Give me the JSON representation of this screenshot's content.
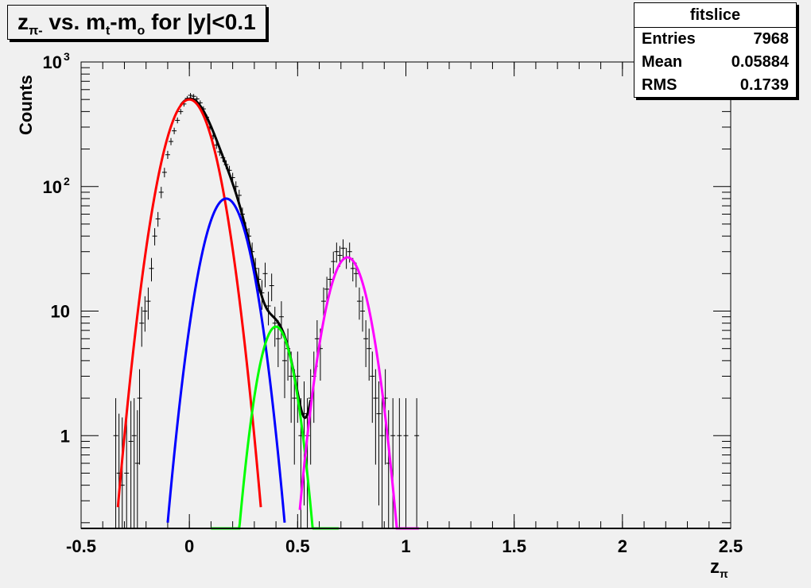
{
  "title": {
    "main": "z",
    "sub": "π-",
    "rest": " vs. m",
    "sub2": "t",
    "rest2": "-m",
    "sub3": "o",
    "rest3": " for |y|<0.1"
  },
  "stats": {
    "header": "fitslice",
    "rows": [
      {
        "label": "Entries",
        "value": "7968"
      },
      {
        "label": "Mean",
        "value": "0.05884"
      },
      {
        "label": "RMS",
        "value": "0.1739"
      }
    ]
  },
  "chart_data": {
    "type": "line",
    "title": "zπ- vs. mt-mo for |y|<0.1",
    "xlabel": "zπ",
    "ylabel": "Counts",
    "xlim": [
      -0.5,
      2.5
    ],
    "ylim": [
      0.18,
      1000
    ],
    "yscale": "log",
    "xticks": [
      "-0.5",
      "0",
      "0.5",
      "1",
      "1.5",
      "2",
      "2.5"
    ],
    "yticks": [
      {
        "v": 1,
        "t": "1"
      },
      {
        "v": 10,
        "t": "10"
      },
      {
        "v": 100,
        "t": "10",
        "sup": "2"
      },
      {
        "v": 1000,
        "t": "10",
        "sup": "3"
      }
    ],
    "series": [
      {
        "color": "#ff0000",
        "peak": 500,
        "mean": 0.0,
        "sigma": 0.085,
        "range": [
          -0.33,
          0.33
        ]
      },
      {
        "color": "#0000ff",
        "peak": 80,
        "mean": 0.17,
        "sigma": 0.078,
        "range": [
          -0.1,
          0.44
        ]
      },
      {
        "color": "#00ff00",
        "peak": 7.5,
        "mean": 0.4,
        "sigma": 0.062,
        "range": [
          0.1,
          0.69
        ]
      },
      {
        "color": "#ff00ff",
        "peak": 27,
        "mean": 0.73,
        "sigma": 0.072,
        "range": [
          0.51,
          1.06
        ]
      }
    ],
    "total_color": "#000000",
    "total_range": [
      -0.04,
      0.56
    ],
    "data_points": [
      [
        -0.34,
        1.0
      ],
      [
        -0.325,
        0.5
      ],
      [
        -0.31,
        0.4
      ],
      [
        -0.29,
        0.5
      ],
      [
        -0.27,
        0.9
      ],
      [
        -0.255,
        1.0
      ],
      [
        -0.24,
        0.6
      ],
      [
        -0.23,
        2.0
      ],
      [
        -0.22,
        8
      ],
      [
        -0.205,
        10
      ],
      [
        -0.19,
        12
      ],
      [
        -0.175,
        22
      ],
      [
        -0.16,
        40
      ],
      [
        -0.145,
        55
      ],
      [
        -0.13,
        90
      ],
      [
        -0.115,
        130
      ],
      [
        -0.1,
        180
      ],
      [
        -0.085,
        230
      ],
      [
        -0.07,
        280
      ],
      [
        -0.055,
        340
      ],
      [
        -0.04,
        400
      ],
      [
        -0.025,
        460
      ],
      [
        -0.01,
        510
      ],
      [
        0.005,
        540
      ],
      [
        0.02,
        530
      ],
      [
        0.035,
        505
      ],
      [
        0.05,
        470
      ],
      [
        0.065,
        420
      ],
      [
        0.08,
        360
      ],
      [
        0.095,
        300
      ],
      [
        0.11,
        255
      ],
      [
        0.125,
        215
      ],
      [
        0.14,
        190
      ],
      [
        0.155,
        170
      ],
      [
        0.17,
        150
      ],
      [
        0.185,
        135
      ],
      [
        0.2,
        118
      ],
      [
        0.215,
        100
      ],
      [
        0.23,
        85
      ],
      [
        0.245,
        60
      ],
      [
        0.26,
        45
      ],
      [
        0.275,
        40
      ],
      [
        0.29,
        30
      ],
      [
        0.305,
        22
      ],
      [
        0.32,
        18
      ],
      [
        0.335,
        14
      ],
      [
        0.35,
        20
      ],
      [
        0.365,
        11
      ],
      [
        0.38,
        16
      ],
      [
        0.395,
        8
      ],
      [
        0.41,
        6
      ],
      [
        0.425,
        9
      ],
      [
        0.44,
        4
      ],
      [
        0.455,
        5
      ],
      [
        0.47,
        3
      ],
      [
        0.485,
        2
      ],
      [
        0.5,
        3
      ],
      [
        0.515,
        1
      ],
      [
        0.53,
        1.5
      ],
      [
        0.545,
        1
      ],
      [
        0.56,
        2
      ],
      [
        0.575,
        3
      ],
      [
        0.59,
        6
      ],
      [
        0.605,
        5
      ],
      [
        0.62,
        12
      ],
      [
        0.635,
        15
      ],
      [
        0.65,
        18
      ],
      [
        0.665,
        25
      ],
      [
        0.68,
        30
      ],
      [
        0.695,
        28
      ],
      [
        0.71,
        32
      ],
      [
        0.725,
        27
      ],
      [
        0.74,
        30
      ],
      [
        0.755,
        22
      ],
      [
        0.77,
        20
      ],
      [
        0.785,
        12
      ],
      [
        0.8,
        10
      ],
      [
        0.815,
        6
      ],
      [
        0.83,
        5
      ],
      [
        0.845,
        3
      ],
      [
        0.86,
        2
      ],
      [
        0.875,
        1.5
      ],
      [
        0.89,
        1.0
      ],
      [
        0.905,
        2.0
      ],
      [
        0.92,
        0.6
      ],
      [
        0.94,
        1.0
      ],
      [
        0.97,
        1.0
      ],
      [
        1.0,
        1.0
      ],
      [
        1.05,
        1.0
      ]
    ]
  },
  "colors": {
    "background": "#f0f0f0",
    "frame": "#000000"
  }
}
